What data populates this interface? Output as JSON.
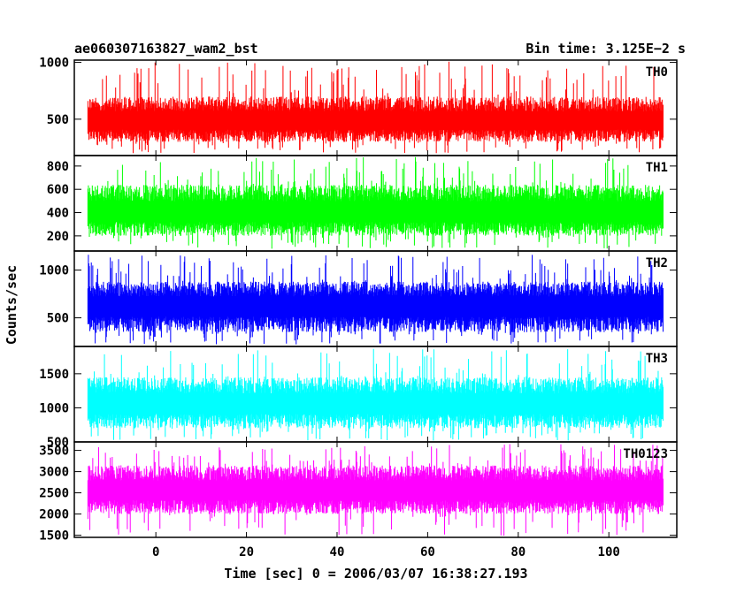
{
  "chart_data": {
    "type": "line",
    "title": "ae060307163827_wam2_bst",
    "bin_time_label": "Bin time: 3.125E−2 s",
    "xlabel": "Time [sec] 0 = 2006/03/07 16:38:27.193",
    "ylabel": "Counts/sec",
    "xlim": [
      -18,
      115
    ],
    "x_data_range": [
      -15,
      112
    ],
    "x_ticks": [
      0,
      20,
      40,
      60,
      80,
      100
    ],
    "x_tick_labels": [
      "0",
      "20",
      "40",
      "60",
      "80",
      "100"
    ],
    "grid": false,
    "panels": [
      {
        "label": "TH0",
        "color": "#ff0000",
        "ylim": [
          180,
          1020
        ],
        "y_ticks": [
          500,
          1000
        ],
        "y_tick_labels": [
          "500",
          "1000"
        ],
        "mean": 480,
        "low_typical": 300,
        "high_typical": 700,
        "min": 200,
        "max": 1010
      },
      {
        "label": "TH1",
        "color": "#00ff00",
        "ylim": [
          70,
          890
        ],
        "y_ticks": [
          200,
          400,
          600,
          800
        ],
        "y_tick_labels": [
          "200",
          "400",
          "600",
          "800"
        ],
        "mean": 400,
        "low_typical": 200,
        "high_typical": 640,
        "min": 90,
        "max": 880
      },
      {
        "label": "TH2",
        "color": "#0000ff",
        "ylim": [
          200,
          1200
        ],
        "y_ticks": [
          500,
          1000
        ],
        "y_tick_labels": [
          "500",
          "1000"
        ],
        "mean": 620,
        "low_typical": 350,
        "high_typical": 880,
        "min": 220,
        "max": 1180
      },
      {
        "label": "TH3",
        "color": "#00ffff",
        "ylim": [
          500,
          1900
        ],
        "y_ticks": [
          500,
          1000,
          1500
        ],
        "y_tick_labels": [
          "500",
          "1000",
          "1500"
        ],
        "mean": 1050,
        "low_typical": 700,
        "high_typical": 1450,
        "min": 520,
        "max": 1870
      },
      {
        "label": "TH0123",
        "color": "#ff00ff",
        "ylim": [
          1450,
          3700
        ],
        "y_ticks": [
          1500,
          2000,
          2500,
          3000,
          3500
        ],
        "y_tick_labels": [
          "1500",
          "2000",
          "2500",
          "3000",
          "3500"
        ],
        "mean": 2550,
        "low_typical": 2000,
        "high_typical": 3150,
        "min": 1480,
        "max": 3680
      }
    ]
  }
}
